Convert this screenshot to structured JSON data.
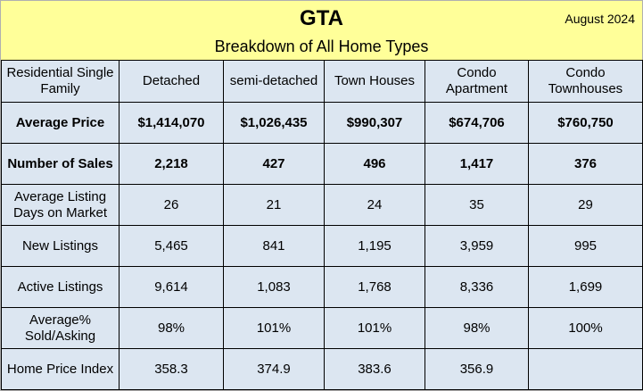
{
  "header": {
    "title": "GTA",
    "date": "August 2024",
    "subtitle": "Breakdown of All Home Types"
  },
  "columns": [
    "Residential Single Family",
    "Detached",
    "semi-detached",
    "Town Houses",
    "Condo Apartment",
    "Condo Townhouses"
  ],
  "rows": [
    {
      "label": "Average Price",
      "bold": true,
      "values": [
        "$1,414,070",
        "$1,026,435",
        "$990,307",
        "$674,706",
        "$760,750"
      ]
    },
    {
      "label": "Number of Sales",
      "bold": true,
      "values": [
        "2,218",
        "427",
        "496",
        "1,417",
        "376"
      ]
    },
    {
      "label": "Average Listing Days on Market",
      "bold": false,
      "values": [
        "26",
        "21",
        "24",
        "35",
        "29"
      ]
    },
    {
      "label": "New Listings",
      "bold": false,
      "values": [
        "5,465",
        "841",
        "1,195",
        "3,959",
        "995"
      ]
    },
    {
      "label": "Active Listings",
      "bold": false,
      "values": [
        "9,614",
        "1,083",
        "1,768",
        "8,336",
        "1,699"
      ]
    },
    {
      "label": "Average% Sold/Asking",
      "bold": false,
      "values": [
        "98%",
        "101%",
        "101%",
        "98%",
        "100%"
      ]
    },
    {
      "label": "Home Price Index",
      "bold": false,
      "values": [
        "358.3",
        "374.9",
        "383.6",
        "356.9",
        ""
      ]
    }
  ]
}
